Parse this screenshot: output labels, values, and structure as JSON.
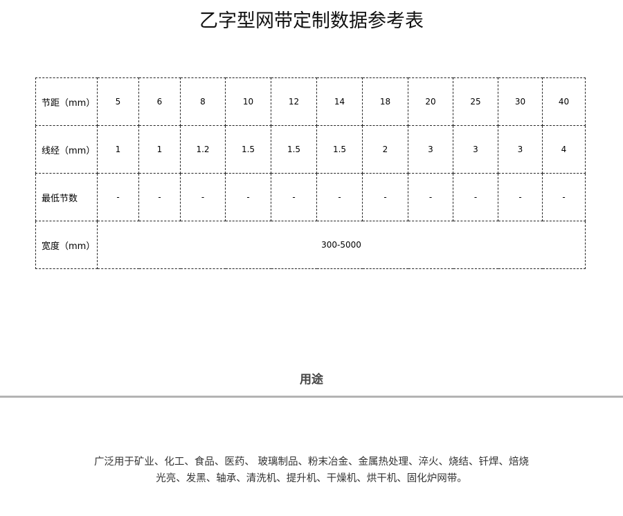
{
  "title": "乙字型网带定制数据参考表",
  "table": {
    "rows": [
      {
        "label": "节距（mm）",
        "values": [
          "5",
          "6",
          "8",
          "10",
          "12",
          "14",
          "18",
          "20",
          "25",
          "30",
          "40"
        ]
      },
      {
        "label": "线经（mm）",
        "values": [
          "1",
          "1",
          "1.2",
          "1.5",
          "1.5",
          "1.5",
          "2",
          "3",
          "3",
          "3",
          "4"
        ]
      },
      {
        "label": "最低节数",
        "values": [
          "-",
          "-",
          "-",
          "-",
          "-",
          "-",
          "-",
          "-",
          "-",
          "-",
          "-"
        ]
      }
    ],
    "width_row": {
      "label": "宽度（mm）",
      "value": "300-5000"
    }
  },
  "usage": {
    "heading": "用途",
    "line1": "广泛用于矿业、化工、食品、医药、 玻璃制品、粉末冶金、金属热处理、淬火、烧结、钎焊、焙烧",
    "line2": "光亮、发黑、轴承、清洗机、提升机、干燥机、烘干机、固化炉网带。"
  }
}
